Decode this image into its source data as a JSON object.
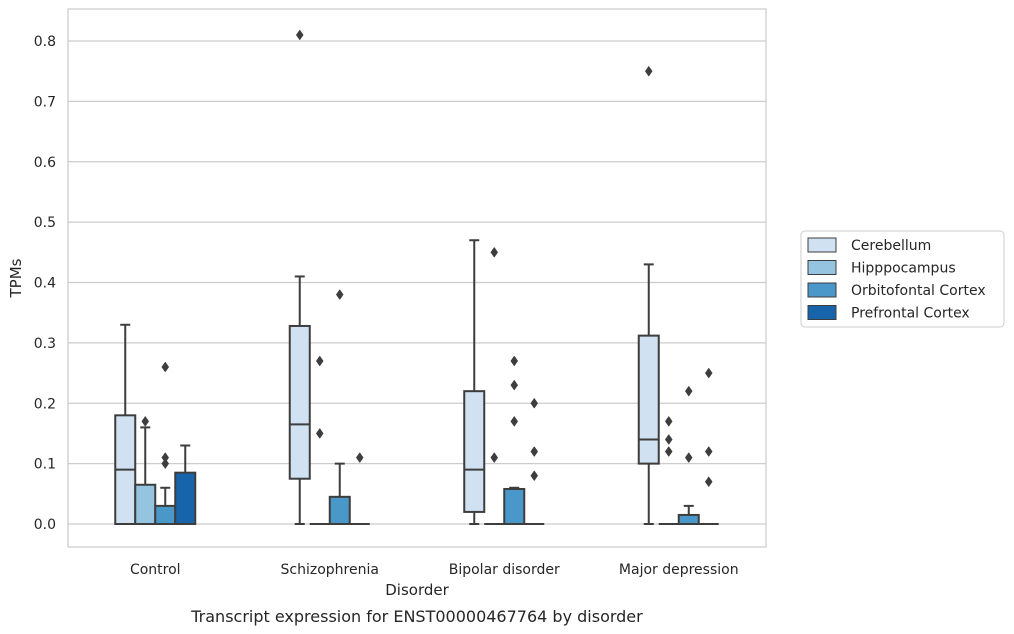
{
  "chart_data": {
    "type": "box",
    "xlabel": "Disorder",
    "ylabel": "TPMs",
    "caption": "Transcript expression for ENST00000467764 by disorder",
    "ylim": [
      -0.04,
      0.85
    ],
    "yticks": [
      0.0,
      0.1,
      0.2,
      0.3,
      0.4,
      0.5,
      0.6,
      0.7,
      0.8
    ],
    "ytick_labels": [
      "0.0",
      "0.1",
      "0.2",
      "0.3",
      "0.4",
      "0.5",
      "0.6",
      "0.7",
      "0.8"
    ],
    "grid": "horizontal",
    "legend_position": "right",
    "categories": [
      "Control",
      "Schizophrenia",
      "Bipolar disorder",
      "Major depression"
    ],
    "series": [
      {
        "name": "Cerebellum",
        "color": "#d0e1f2",
        "boxes": [
          {
            "q1": 0.0,
            "median": 0.09,
            "q3": 0.18,
            "whisker_low": 0.0,
            "whisker_high": 0.33,
            "outliers": []
          },
          {
            "q1": 0.075,
            "median": 0.165,
            "q3": 0.328,
            "whisker_low": 0.0,
            "whisker_high": 0.41,
            "outliers": [
              0.81
            ]
          },
          {
            "q1": 0.02,
            "median": 0.09,
            "q3": 0.22,
            "whisker_low": 0.0,
            "whisker_high": 0.47,
            "outliers": []
          },
          {
            "q1": 0.1,
            "median": 0.14,
            "q3": 0.312,
            "whisker_low": 0.0,
            "whisker_high": 0.43,
            "outliers": [
              0.75
            ]
          }
        ]
      },
      {
        "name": "Hipppocampus",
        "color": "#94c4df",
        "boxes": [
          {
            "q1": 0.0,
            "median": 0.0,
            "q3": 0.065,
            "whisker_low": 0.0,
            "whisker_high": 0.16,
            "outliers": [
              0.17
            ]
          },
          {
            "q1": 0.0,
            "median": 0.0,
            "q3": 0.0,
            "whisker_low": 0.0,
            "whisker_high": 0.0,
            "outliers": [
              0.27,
              0.15
            ]
          },
          {
            "q1": 0.0,
            "median": 0.0,
            "q3": 0.0,
            "whisker_low": 0.0,
            "whisker_high": 0.0,
            "outliers": [
              0.45,
              0.11
            ]
          },
          {
            "q1": 0.0,
            "median": 0.0,
            "q3": 0.0,
            "whisker_low": 0.0,
            "whisker_high": 0.0,
            "outliers": [
              0.17,
              0.14,
              0.12
            ]
          }
        ]
      },
      {
        "name": "Orbitofontal Cortex",
        "color": "#4a98c9",
        "boxes": [
          {
            "q1": 0.0,
            "median": 0.0,
            "q3": 0.03,
            "whisker_low": 0.0,
            "whisker_high": 0.06,
            "outliers": [
              0.26,
              0.11,
              0.1
            ]
          },
          {
            "q1": 0.0,
            "median": 0.0,
            "q3": 0.045,
            "whisker_low": 0.0,
            "whisker_high": 0.1,
            "outliers": [
              0.38
            ]
          },
          {
            "q1": 0.0,
            "median": 0.0,
            "q3": 0.058,
            "whisker_low": 0.0,
            "whisker_high": 0.06,
            "outliers": [
              0.27,
              0.23,
              0.17
            ]
          },
          {
            "q1": 0.0,
            "median": 0.0,
            "q3": 0.015,
            "whisker_low": 0.0,
            "whisker_high": 0.03,
            "outliers": [
              0.22,
              0.11
            ]
          }
        ]
      },
      {
        "name": "Prefrontal Cortex",
        "color": "#1764ab",
        "boxes": [
          {
            "q1": 0.0,
            "median": 0.0,
            "q3": 0.085,
            "whisker_low": 0.0,
            "whisker_high": 0.13,
            "outliers": []
          },
          {
            "q1": 0.0,
            "median": 0.0,
            "q3": 0.0,
            "whisker_low": 0.0,
            "whisker_high": 0.0,
            "outliers": [
              0.11
            ]
          },
          {
            "q1": 0.0,
            "median": 0.0,
            "q3": 0.0,
            "whisker_low": 0.0,
            "whisker_high": 0.0,
            "outliers": [
              0.2,
              0.12,
              0.08
            ]
          },
          {
            "q1": 0.0,
            "median": 0.0,
            "q3": 0.0,
            "whisker_low": 0.0,
            "whisker_high": 0.0,
            "outliers": [
              0.25,
              0.12,
              0.07
            ]
          }
        ]
      }
    ]
  }
}
